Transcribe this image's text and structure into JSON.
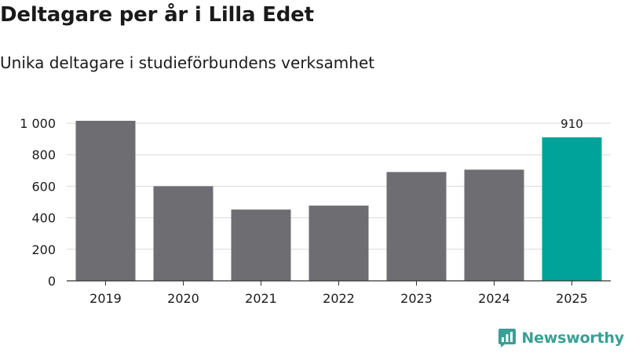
{
  "header": {
    "title": "Deltagare per år i Lilla Edet",
    "subtitle": "Unika deltagare i studieförbundens verksamhet"
  },
  "brand": {
    "name": "Newsworthy",
    "color": "#3a9f95"
  },
  "colors": {
    "bar_default": "#6e6d72",
    "bar_highlight": "#00a39a",
    "grid": "#d9d9d9",
    "axis": "#333333",
    "text": "#1a1a1a"
  },
  "chart_data": {
    "type": "bar",
    "title": "Deltagare per år i Lilla Edet",
    "subtitle": "Unika deltagare i studieförbundens verksamhet",
    "categories": [
      "2019",
      "2020",
      "2021",
      "2022",
      "2023",
      "2024",
      "2025"
    ],
    "values": [
      1015,
      600,
      452,
      477,
      690,
      705,
      910
    ],
    "highlight_index": 6,
    "data_labels": [
      {
        "index": 6,
        "text": "910"
      }
    ],
    "yticks": [
      0,
      200,
      400,
      600,
      800,
      1000
    ],
    "ytick_labels": [
      "0",
      "200",
      "400",
      "600",
      "800",
      "1 000"
    ],
    "ylim": [
      0,
      1000
    ],
    "grid": true,
    "xlabel": "",
    "ylabel": ""
  }
}
